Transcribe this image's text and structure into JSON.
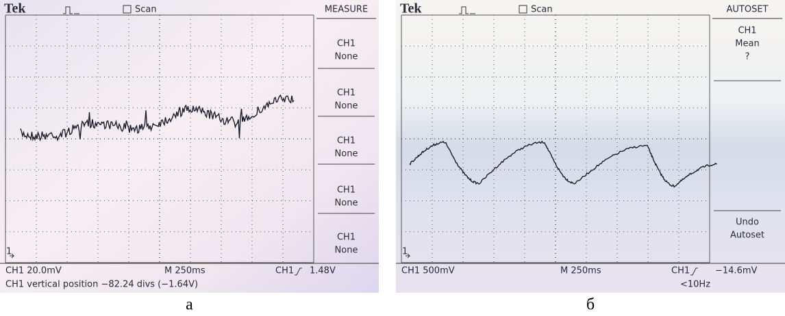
{
  "panels": [
    {
      "brand": "Tek",
      "trigger_mode": "Scan",
      "menu_title": "MEASURE",
      "menu_items": [
        {
          "lines": [
            "CH1",
            "None"
          ]
        },
        {
          "lines": [
            "CH1",
            "None"
          ]
        },
        {
          "lines": [
            "CH1",
            "None"
          ]
        },
        {
          "lines": [
            "CH1",
            "None"
          ]
        },
        {
          "lines": [
            "CH1",
            "None"
          ]
        }
      ],
      "channel_scale": "CH1  20.0mV",
      "timebase": "M 250ms",
      "trigger_channel": "CH1",
      "trigger_level": "1.48V",
      "status": "CH1 vertical position −82.24 divs (−1.64V)",
      "ground_marker": "1",
      "caption": "а"
    },
    {
      "brand": "Tek",
      "trigger_mode": "Scan",
      "menu_title": "AUTOSET",
      "menu_items": [
        {
          "lines": [
            "CH1",
            "Mean",
            "?"
          ]
        },
        {
          "lines": [
            "Undo",
            "Autoset"
          ]
        }
      ],
      "channel_scale": "CH1  500mV",
      "timebase": "M 250ms",
      "trigger_channel": "CH1",
      "trigger_level": "−14.6mV",
      "frequency": "<10Hz",
      "ground_marker": "1",
      "caption": "б"
    }
  ]
}
